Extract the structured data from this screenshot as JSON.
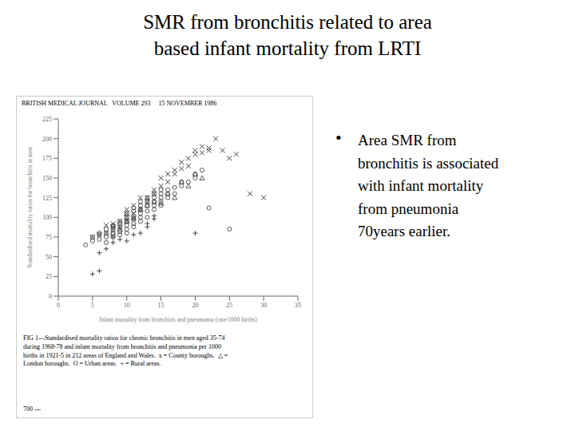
{
  "chart_data": {
    "type": "scatter",
    "title": "SMR from bronchitis related to area\nbased infant mortality from LRTI",
    "xlabel": "Infant mortality from bronchitis and pneumonia (rate/1000 births)",
    "ylabel": "Standardised mortality ratios for bronchitis in men",
    "annotations": [
      "BRITISH MEDICAL JOURNAL   VOLUME 293     15 NOVEMBER 1986",
      "FIG 1—Standardised mortality ratios for chronic bronchitis in men aged 35-74\nduring 1968-78 and infant mortality from bronchitis and pneumonia per 1000\nbirths in 1921-5 in 212 areas of England and Wales.  x = County boroughs.  △ =\nLondon boroughs.  O = Urban areas.  + = Rural areas.",
      "700 —",
      "•",
      "Area SMR from\nbronchitis is associated\nwith infant mortality\nfrom pneumonia\n70years earlier."
    ],
    "xlim": [
      0,
      35
    ],
    "ylim": [
      0,
      225
    ],
    "xticks": [
      0,
      5,
      10,
      15,
      20,
      25,
      30,
      35
    ],
    "yticks": [
      0,
      25,
      50,
      75,
      100,
      125,
      150,
      175,
      200,
      225
    ],
    "grid": false,
    "series": [
      {
        "marker": "x",
        "color": "#444444",
        "x": [
          5,
          6,
          7,
          7,
          8,
          8,
          8,
          9,
          9,
          10,
          10,
          10,
          10,
          11,
          11,
          11,
          12,
          12,
          13,
          13,
          14,
          14,
          15,
          15,
          16,
          16,
          17,
          17,
          18,
          18,
          19,
          19,
          20,
          20,
          21,
          21,
          22,
          22,
          23,
          24,
          25,
          26,
          28,
          30
        ],
        "values": [
          75,
          78,
          80,
          90,
          85,
          88,
          92,
          88,
          95,
          95,
          100,
          105,
          110,
          98,
          105,
          115,
          110,
          125,
          120,
          125,
          135,
          130,
          140,
          150,
          145,
          155,
          155,
          160,
          162,
          170,
          165,
          175,
          180,
          185,
          182,
          190,
          188,
          185,
          200,
          185,
          175,
          180,
          130,
          125
        ]
      },
      {
        "marker": "triangle_open",
        "color": "#444444",
        "x": [
          8,
          9,
          10,
          11,
          12,
          13,
          14,
          15,
          16,
          17,
          18,
          19,
          20,
          21
        ],
        "values": [
          80,
          85,
          95,
          100,
          110,
          115,
          120,
          118,
          130,
          125,
          145,
          140,
          155,
          150
        ]
      },
      {
        "marker": "circle_open",
        "color": "#444444",
        "x": [
          4,
          5,
          5,
          6,
          6,
          6,
          7,
          7,
          7,
          7,
          8,
          8,
          8,
          8,
          8,
          9,
          9,
          9,
          9,
          9,
          10,
          10,
          10,
          10,
          10,
          10,
          11,
          11,
          11,
          11,
          11,
          11,
          12,
          12,
          12,
          12,
          12,
          12,
          13,
          13,
          13,
          13,
          13,
          14,
          14,
          14,
          14,
          14,
          15,
          15,
          15,
          15,
          15,
          16,
          16,
          16,
          17,
          17,
          18,
          18,
          19,
          20,
          20,
          21,
          22,
          25
        ],
        "values": [
          65,
          70,
          75,
          72,
          78,
          80,
          68,
          75,
          80,
          85,
          75,
          80,
          85,
          88,
          90,
          78,
          82,
          88,
          92,
          95,
          80,
          85,
          90,
          95,
          100,
          105,
          88,
          92,
          98,
          102,
          108,
          112,
          95,
          100,
          105,
          110,
          115,
          120,
          100,
          108,
          115,
          120,
          125,
          110,
          115,
          120,
          125,
          130,
          115,
          120,
          125,
          130,
          135,
          125,
          130,
          135,
          130,
          138,
          140,
          145,
          145,
          150,
          155,
          160,
          112,
          85
        ]
      },
      {
        "marker": "plus",
        "color": "#444444",
        "x": [
          5,
          6,
          6,
          7,
          8,
          8,
          9,
          10,
          11,
          12,
          13,
          13,
          14,
          14,
          20
        ],
        "values": [
          28,
          32,
          55,
          60,
          68,
          75,
          72,
          70,
          78,
          80,
          88,
          92,
          98,
          102,
          80
        ]
      }
    ]
  }
}
